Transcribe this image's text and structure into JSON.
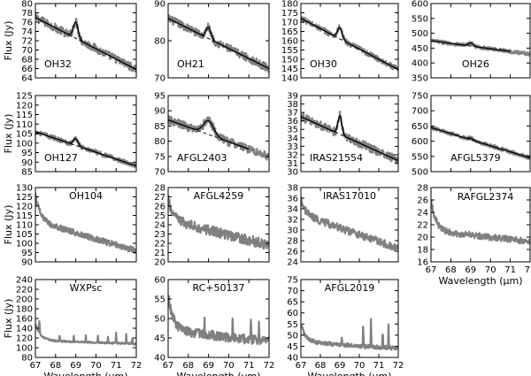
{
  "figure": {
    "ylabel": "Flux (Jy)",
    "xlabel": "Wavelength (μm)"
  },
  "colors": {
    "spectrum": "#808080",
    "fit": "#000000",
    "axes": "#000000",
    "background": "#ffffff"
  },
  "chart_data": [
    {
      "type": "line",
      "label": "OH32",
      "ylabel": "Flux (Jy)",
      "xlim": [
        67,
        72
      ],
      "ylim": [
        64,
        80
      ],
      "yticks": [
        64,
        66,
        68,
        70,
        72,
        74,
        76,
        78,
        80
      ],
      "xticks": [
        67,
        68,
        69,
        70,
        71,
        72
      ],
      "continuum": [
        77,
        65.8
      ],
      "feature": {
        "center": 69,
        "amp": 3.5,
        "sigma": 0.12
      },
      "fit_curve": true,
      "dashed_continuum": true,
      "noise": 0.9,
      "label_pos": "lower-left"
    },
    {
      "type": "line",
      "label": "OH21",
      "xlim": [
        67,
        72
      ],
      "ylim": [
        70,
        90
      ],
      "yticks": [
        70,
        80,
        90
      ],
      "xticks": [
        67,
        68,
        69,
        70,
        71,
        72
      ],
      "continuum": [
        86,
        72.5
      ],
      "feature": {
        "center": 69,
        "amp": 3,
        "sigma": 0.12
      },
      "fit_curve": true,
      "dashed_continuum": true,
      "noise": 1.1,
      "label_pos": "lower-left"
    },
    {
      "type": "line",
      "label": "OH30",
      "xlim": [
        67,
        72
      ],
      "ylim": [
        140,
        180
      ],
      "yticks": [
        140,
        145,
        150,
        155,
        160,
        165,
        170,
        175,
        180
      ],
      "xticks": [
        67,
        68,
        69,
        70,
        71,
        72
      ],
      "continuum": [
        172,
        144.5
      ],
      "feature": {
        "center": 69,
        "amp": 6,
        "sigma": 0.12
      },
      "fit_curve": true,
      "dashed_continuum": true,
      "noise": 1.5,
      "label_pos": "lower-left"
    },
    {
      "type": "line",
      "label": "OH26",
      "xlim": [
        67,
        72
      ],
      "ylim": [
        350,
        600
      ],
      "yticks": [
        350,
        400,
        450,
        500,
        550,
        600
      ],
      "xticks": [
        67,
        68,
        69,
        70,
        71,
        72
      ],
      "continuum": [
        475,
        430
      ],
      "continuum_range": [
        67,
        71
      ],
      "feature": {
        "center": 69,
        "amp": 10,
        "sigma": 0.12
      },
      "fit_curve": true,
      "dashed_continuum": true,
      "noise": 6,
      "label_pos": "lower-middle"
    },
    {
      "type": "line",
      "label": "OH127",
      "ylabel": "Flux (Jy)",
      "xlim": [
        67,
        72
      ],
      "ylim": [
        85,
        125
      ],
      "yticks": [
        85,
        90,
        95,
        100,
        105,
        110,
        115,
        120,
        125
      ],
      "xticks": [
        67,
        68,
        69,
        70,
        71,
        72
      ],
      "continuum": [
        106,
        88
      ],
      "feature": {
        "center": 69,
        "amp": 3.5,
        "sigma": 0.12
      },
      "fit_curve": true,
      "dashed_continuum": true,
      "noise": 1.2,
      "label_pos": "lower-left"
    },
    {
      "type": "line",
      "label": "AFGL2403",
      "xlim": [
        67,
        72
      ],
      "ylim": [
        70,
        95
      ],
      "yticks": [
        70,
        75,
        80,
        85,
        90,
        95
      ],
      "xticks": [
        67,
        68,
        69,
        70,
        71,
        72
      ],
      "continuum": [
        87,
        75
      ],
      "continuum_range": [
        67,
        71
      ],
      "feature": {
        "center": 69,
        "amp": 4.5,
        "sigma": 0.25
      },
      "fit_curve": true,
      "dashed_continuum": true,
      "noise": 1.4,
      "label_pos": "lower-left"
    },
    {
      "type": "line",
      "label": "IRAS21554",
      "xlim": [
        67,
        72
      ],
      "ylim": [
        30,
        39
      ],
      "yticks": [
        30,
        31,
        32,
        33,
        34,
        35,
        36,
        37,
        38,
        39
      ],
      "xticks": [
        67,
        68,
        69,
        70,
        71,
        72
      ],
      "continuum": [
        36.5,
        31.3
      ],
      "feature": {
        "center": 69,
        "amp": 2.2,
        "sigma": 0.1
      },
      "fit_curve": true,
      "dashed_continuum": true,
      "noise": 0.5,
      "label_pos": "lower-left"
    },
    {
      "type": "line",
      "label": "AFGL5379",
      "xlim": [
        67,
        72
      ],
      "ylim": [
        500,
        750
      ],
      "yticks": [
        500,
        550,
        600,
        650,
        700,
        750
      ],
      "xticks": [
        67,
        68,
        69,
        70,
        71,
        72
      ],
      "continuum": [
        645,
        545
      ],
      "feature": {
        "center": 69,
        "amp": 5,
        "sigma": 0.12
      },
      "fit_curve": true,
      "dashed_continuum": true,
      "noise": 6,
      "label_pos": "lower-middle"
    },
    {
      "type": "line",
      "label": "OH104",
      "ylabel": "Flux (Jy)",
      "xlim": [
        67,
        72
      ],
      "ylim": [
        90,
        130
      ],
      "yticks": [
        90,
        95,
        100,
        105,
        110,
        115,
        120,
        125,
        130
      ],
      "xticks": [
        67,
        68,
        69,
        70,
        71,
        72
      ],
      "continuum": [
        112,
        96
      ],
      "edge_rise": 14,
      "noise": 1.6,
      "label_pos": "top-middle"
    },
    {
      "type": "line",
      "label": "AFGL4259",
      "xlim": [
        67,
        72
      ],
      "ylim": [
        20,
        28
      ],
      "yticks": [
        20,
        21,
        22,
        23,
        24,
        25,
        26,
        27,
        28
      ],
      "xticks": [
        67,
        68,
        69,
        70,
        71,
        72
      ],
      "continuum": [
        24.5,
        21.8
      ],
      "edge_rise": 2.2,
      "noise": 0.55,
      "label_pos": "top-middle"
    },
    {
      "type": "line",
      "label": "IRAS17010",
      "xlim": [
        67,
        72
      ],
      "ylim": [
        24,
        38
      ],
      "yticks": [
        24,
        26,
        28,
        30,
        32,
        34,
        36,
        38
      ],
      "xticks": [
        67,
        68,
        69,
        70,
        71,
        72
      ],
      "continuum": [
        33,
        26.5
      ],
      "edge_rise": 2.5,
      "noise": 0.7,
      "label_pos": "top-middle"
    },
    {
      "type": "line",
      "label": "RAFGL2374",
      "xlim": [
        67,
        72
      ],
      "ylim": [
        16,
        28
      ],
      "yticks": [
        16,
        18,
        20,
        22,
        24,
        26,
        28
      ],
      "xticks": [
        67,
        68,
        69,
        70,
        71,
        72
      ],
      "xlabel": "Wavelength (μm)",
      "continuum": [
        21,
        19.3
      ],
      "edge_rise": 5,
      "noise": 0.5,
      "label_pos": "top-right"
    },
    {
      "type": "line",
      "label": "WXPsc",
      "ylabel": "Flux (Jy)",
      "xlim": [
        67,
        72
      ],
      "ylim": [
        80,
        240
      ],
      "yticks": [
        80,
        100,
        120,
        140,
        160,
        180,
        200,
        220,
        240
      ],
      "xticks": [
        67,
        68,
        69,
        70,
        71,
        72
      ],
      "xlabel": "Wavelength (μm)",
      "continuum": [
        115,
        108
      ],
      "edge_rise": 35,
      "spikes": [
        [
          67.2,
          28
        ],
        [
          68.2,
          14
        ],
        [
          68.9,
          12
        ],
        [
          69.5,
          14
        ],
        [
          70.1,
          16
        ],
        [
          70.6,
          14
        ],
        [
          71.0,
          22
        ],
        [
          71.5,
          18
        ],
        [
          71.8,
          14
        ]
      ],
      "noise": 1.6,
      "label_pos": "top-middle"
    },
    {
      "type": "line",
      "label": "RC+50137",
      "xlim": [
        67,
        72
      ],
      "ylim": [
        40,
        60
      ],
      "yticks": [
        40,
        45,
        50,
        55,
        60
      ],
      "xticks": [
        67,
        68,
        69,
        70,
        71,
        72
      ],
      "xlabel": "Wavelength (μm)",
      "continuum": [
        47,
        44
      ],
      "edge_rise": 9,
      "spikes": [
        [
          68.8,
          4
        ],
        [
          70.2,
          5
        ],
        [
          71.1,
          6
        ],
        [
          71.5,
          4
        ]
      ],
      "noise": 1.2,
      "label_pos": "top-middle"
    },
    {
      "type": "line",
      "label": "AFGL2019",
      "xlim": [
        67,
        72
      ],
      "ylim": [
        40,
        75
      ],
      "yticks": [
        40,
        45,
        50,
        55,
        60,
        65,
        70,
        75
      ],
      "xticks": [
        67,
        68,
        69,
        70,
        71,
        72
      ],
      "xlabel": "Wavelength (μm)",
      "continuum": [
        47,
        44
      ],
      "edge_rise": 8,
      "spikes": [
        [
          69.1,
          4
        ],
        [
          70.2,
          10
        ],
        [
          70.6,
          14
        ],
        [
          71.2,
          8
        ],
        [
          71.5,
          10
        ]
      ],
      "noise": 0.9,
      "label_pos": "top-middle"
    }
  ]
}
